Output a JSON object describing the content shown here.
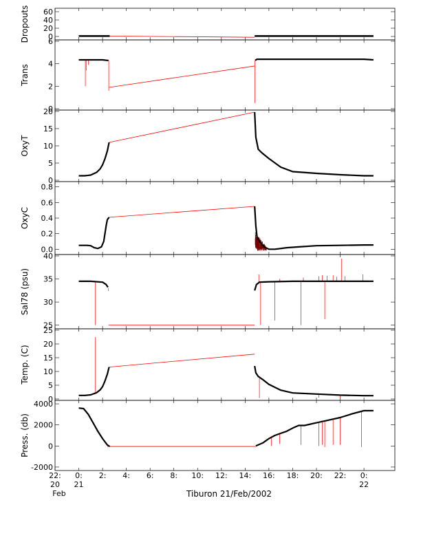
{
  "xlabel": "Tiburon 21/Feb/2002",
  "x_axis": {
    "min": -2.0,
    "max": 26.6,
    "unit": "hour of 21/Feb/2002",
    "ticks": [
      {
        "x": -2,
        "label": "22:",
        "sub1": "20",
        "sub2": "Feb"
      },
      {
        "x": 0,
        "label": "0:",
        "sub1": "21",
        "sub2": ""
      },
      {
        "x": 2,
        "label": "2:",
        "sub1": "",
        "sub2": ""
      },
      {
        "x": 4,
        "label": "4:",
        "sub1": "",
        "sub2": ""
      },
      {
        "x": 6,
        "label": "6:",
        "sub1": "",
        "sub2": ""
      },
      {
        "x": 8,
        "label": "8:",
        "sub1": "",
        "sub2": ""
      },
      {
        "x": 10,
        "label": "10:",
        "sub1": "",
        "sub2": ""
      },
      {
        "x": 12,
        "label": "12:",
        "sub1": "",
        "sub2": ""
      },
      {
        "x": 14,
        "label": "14:",
        "sub1": "",
        "sub2": ""
      },
      {
        "x": 16,
        "label": "16:",
        "sub1": "",
        "sub2": ""
      },
      {
        "x": 18,
        "label": "18:",
        "sub1": "",
        "sub2": ""
      },
      {
        "x": 20,
        "label": "20:",
        "sub1": "",
        "sub2": ""
      },
      {
        "x": 22,
        "label": "22:",
        "sub1": "",
        "sub2": ""
      },
      {
        "x": 24,
        "label": "0:",
        "sub1": "22",
        "sub2": ""
      }
    ]
  },
  "colors": {
    "data": "#000000",
    "gap": "#ff0000",
    "frame": "#000000"
  },
  "chart_data": {
    "type": "line",
    "panels": [
      {
        "ylabel": "Dropouts",
        "ylim": [
          -5,
          65
        ],
        "yticks": [
          0,
          20,
          40,
          60
        ],
        "ytick_labels": [
          "0",
          "20",
          "40",
          "60"
        ],
        "series": [
          {
            "x": [
              0,
              0.6,
              1.2,
              1.8,
              2.4,
              2.6
            ],
            "y": [
              1,
              1,
              1,
              1,
              1,
              1
            ],
            "style": "dense"
          },
          {
            "x": [
              14.8,
              16,
              18,
              20,
              22,
              24,
              24.8
            ],
            "y": [
              1,
              1,
              1,
              1,
              1,
              1,
              1
            ],
            "style": "dense"
          }
        ],
        "gap_line": {
          "x": [
            2.6,
            14.8
          ],
          "y": [
            1,
            -2
          ]
        }
      },
      {
        "ylabel": "Trans",
        "ylim": [
          0,
          6
        ],
        "yticks": [
          0,
          2,
          4,
          6
        ],
        "ytick_labels": [
          "0",
          "2",
          "4",
          "6"
        ],
        "series": [
          {
            "x": [
              0,
              0.5,
              1,
              1.5,
              2.0,
              2.4,
              2.5
            ],
            "y": [
              4.35,
              4.35,
              4.35,
              4.35,
              4.35,
              4.3,
              4.3
            ]
          },
          {
            "x": [
              14.85,
              15.0,
              16,
              18,
              20,
              22,
              24,
              24.8
            ],
            "y": [
              4.3,
              4.4,
              4.4,
              4.4,
              4.4,
              4.4,
              4.4,
              4.35
            ]
          }
        ],
        "spikes": [
          {
            "x": 0.55,
            "y0": 4.35,
            "y1": 2.0
          },
          {
            "x": 0.62,
            "y0": 4.35,
            "y1": 3.4
          },
          {
            "x": 0.8,
            "y0": 4.35,
            "y1": 3.9
          },
          {
            "x": 2.52,
            "y0": 4.3,
            "y1": 1.6
          },
          {
            "x": 14.83,
            "y0": 4.3,
            "y1": 0.5
          }
        ],
        "gap_line": {
          "x": [
            2.55,
            14.8
          ],
          "y": [
            1.9,
            3.8
          ]
        }
      },
      {
        "ylabel": "OxyT",
        "ylim": [
          0,
          20
        ],
        "yticks": [
          0,
          5,
          10,
          15,
          20
        ],
        "ytick_labels": [
          "0",
          "5",
          "10",
          "15",
          "20"
        ],
        "series": [
          {
            "x": [
              0,
              0.5,
              1.0,
              1.5,
              1.8,
              2.0,
              2.2,
              2.4,
              2.55
            ],
            "y": [
              1.3,
              1.3,
              1.5,
              2.3,
              3.3,
              4.5,
              6.2,
              8.5,
              11.0
            ]
          },
          {
            "x": [
              14.8,
              14.9,
              15.1,
              15.4,
              16.0,
              17.0,
              18.0,
              20,
              22,
              24,
              24.8
            ],
            "y": [
              19.8,
              12.5,
              9.0,
              8.0,
              6.3,
              3.8,
              2.5,
              2.0,
              1.6,
              1.3,
              1.3
            ]
          }
        ],
        "gap_line": {
          "x": [
            2.55,
            14.8
          ],
          "y": [
            11.0,
            19.8
          ]
        }
      },
      {
        "ylabel": "OxyC",
        "ylim": [
          -0.05,
          0.85
        ],
        "yticks": [
          0.0,
          0.2,
          0.4,
          0.6,
          0.8
        ],
        "ytick_labels": [
          "0.0",
          "0.2",
          "0.4",
          "0.6",
          "0.8"
        ],
        "series": [
          {
            "x": [
              0,
              0.7,
              1.0,
              1.3,
              1.6,
              1.9,
              2.1,
              2.3,
              2.4,
              2.55
            ],
            "y": [
              0.05,
              0.05,
              0.045,
              0.02,
              0.01,
              0.03,
              0.1,
              0.3,
              0.38,
              0.41
            ]
          },
          {
            "x": [
              14.8,
              14.9,
              15.0,
              15.2,
              15.6,
              16.0,
              16.5,
              17.5,
              18.5,
              20,
              22,
              24,
              24.8
            ],
            "y": [
              0.55,
              0.3,
              0.16,
              0.1,
              0.03,
              0.0,
              0.0,
              0.02,
              0.03,
              0.045,
              0.05,
              0.055,
              0.055
            ]
          }
        ],
        "noise": {
          "x0": 14.85,
          "x1": 15.8,
          "y_lo": -0.02,
          "y_hi": 0.22
        },
        "gap_line": {
          "x": [
            2.55,
            14.8
          ],
          "y": [
            0.41,
            0.55
          ]
        }
      },
      {
        "ylabel": "Sal78 (psu)",
        "ylim": [
          24.5,
          40
        ],
        "yticks": [
          25,
          30,
          35,
          40
        ],
        "ytick_labels": [
          "25",
          "30",
          "35",
          "40"
        ],
        "series": [
          {
            "x": [
              0,
              1,
              2.0,
              2.3,
              2.45
            ],
            "y": [
              34.5,
              34.5,
              34.3,
              33.8,
              33.2
            ]
          },
          {
            "x": [
              14.8,
              14.95,
              15.2,
              16,
              18,
              20,
              22,
              24,
              24.8
            ],
            "y": [
              32.5,
              33.8,
              34.3,
              34.4,
              34.5,
              34.5,
              34.5,
              34.5,
              34.5
            ]
          }
        ],
        "spikes": [
          {
            "x": 1.4,
            "y0": 34.5,
            "y1": 25.0
          },
          {
            "x": 2.5,
            "y0": 33.0,
            "y1": 32.4
          },
          {
            "x": 15.15,
            "y0": 34.3,
            "y1": 36.0
          },
          {
            "x": 15.3,
            "y0": 34.3,
            "y1": 25.0
          },
          {
            "x": 16.5,
            "y0": 34.4,
            "y1": 26.0
          },
          {
            "x": 16.9,
            "y0": 34.4,
            "y1": 35.0
          },
          {
            "x": 18.7,
            "y0": 34.5,
            "y1": 25.0
          },
          {
            "x": 18.9,
            "y0": 34.5,
            "y1": 35.3
          },
          {
            "x": 20.2,
            "y0": 34.5,
            "y1": 35.6
          },
          {
            "x": 20.5,
            "y0": 34.5,
            "y1": 35.8
          },
          {
            "x": 20.7,
            "y0": 34.5,
            "y1": 26.3
          },
          {
            "x": 20.9,
            "y0": 34.5,
            "y1": 35.7
          },
          {
            "x": 21.4,
            "y0": 34.5,
            "y1": 35.8
          },
          {
            "x": 21.7,
            "y0": 34.5,
            "y1": 35.5
          },
          {
            "x": 22.1,
            "y0": 34.5,
            "y1": 39.4
          },
          {
            "x": 22.4,
            "y0": 34.5,
            "y1": 35.6
          },
          {
            "x": 23.9,
            "y0": 34.5,
            "y1": 36.0
          }
        ],
        "gap_line": {
          "x": [
            2.5,
            14.8
          ],
          "y": [
            25.0,
            25.0
          ]
        }
      },
      {
        "ylabel": "Temp. (C)",
        "ylim": [
          0,
          25
        ],
        "yticks": [
          0,
          5,
          10,
          15,
          20,
          25
        ],
        "ytick_labels": [
          "0",
          "5",
          "10",
          "15",
          "20",
          "25"
        ],
        "series": [
          {
            "x": [
              0,
              0.5,
              1.0,
              1.5,
              1.8,
              2.0,
              2.2,
              2.4,
              2.55
            ],
            "y": [
              1.3,
              1.3,
              1.5,
              2.3,
              3.3,
              4.5,
              6.5,
              9.0,
              11.6
            ]
          },
          {
            "x": [
              14.8,
              14.9,
              15.1,
              15.5,
              16.0,
              17.0,
              18.0,
              20,
              22,
              24,
              24.8
            ],
            "y": [
              12.0,
              9.5,
              8.2,
              7.0,
              5.3,
              3.2,
              2.2,
              1.8,
              1.4,
              1.2,
              1.2
            ]
          }
        ],
        "spikes": [
          {
            "x": 1.4,
            "y0": 1.8,
            "y1": 22.5
          },
          {
            "x": 15.2,
            "y0": 7.5,
            "y1": 0.3
          },
          {
            "x": 20.2,
            "y0": 1.7,
            "y1": 0.5
          },
          {
            "x": 22.0,
            "y0": 1.4,
            "y1": 0.4
          }
        ],
        "gap_line": {
          "x": [
            2.55,
            14.8
          ],
          "y": [
            11.6,
            16.3
          ]
        }
      },
      {
        "ylabel": "Press. (db)",
        "ylim": [
          -2200,
          4200
        ],
        "yticks": [
          -2000,
          0,
          2000,
          4000
        ],
        "ytick_labels": [
          "-2000",
          "0",
          "2000",
          "4000"
        ],
        "series": [
          {
            "x": [
              0,
              0.4,
              0.8,
              1.2,
              1.6,
              2.0,
              2.4,
              2.6
            ],
            "y": [
              3600,
              3550,
              3000,
              2200,
              1400,
              700,
              100,
              -50
            ]
          },
          {
            "x": [
              14.9,
              15.5,
              16.0,
              16.5,
              17.0,
              17.5,
              18.0,
              18.5,
              19.0,
              20,
              21,
              22,
              23,
              24.0,
              24.8
            ],
            "y": [
              0,
              300,
              700,
              1000,
              1200,
              1400,
              1700,
              1950,
              1950,
              2200,
              2450,
              2700,
              3050,
              3350,
              3350
            ]
          }
        ],
        "spikes": [
          {
            "x": 2.45,
            "y0": 100,
            "y1": -100
          },
          {
            "x": 16.2,
            "y0": 900,
            "y1": 0
          },
          {
            "x": 16.9,
            "y0": 1200,
            "y1": 200
          },
          {
            "x": 18.7,
            "y0": 1950,
            "y1": 100
          },
          {
            "x": 20.2,
            "y0": 2200,
            "y1": 0
          },
          {
            "x": 20.5,
            "y0": 2300,
            "y1": 100
          },
          {
            "x": 20.7,
            "y0": 2350,
            "y1": -100
          },
          {
            "x": 21.4,
            "y0": 2500,
            "y1": 100
          },
          {
            "x": 22.0,
            "y0": 2700,
            "y1": 100
          },
          {
            "x": 23.8,
            "y0": 3300,
            "y1": -100
          }
        ],
        "gap_line": {
          "x": [
            2.6,
            14.9
          ],
          "y": [
            -50,
            -50
          ]
        }
      }
    ]
  }
}
